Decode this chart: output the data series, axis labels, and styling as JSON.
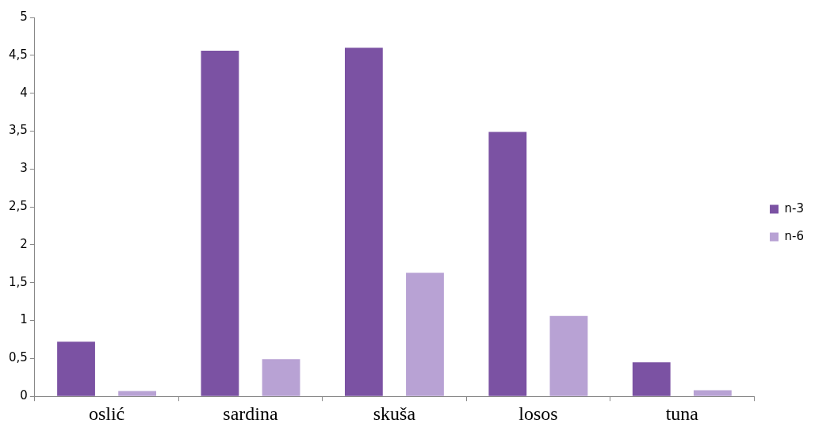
{
  "chart_data": {
    "type": "bar",
    "categories": [
      "oslić",
      "sardina",
      "skuša",
      "losos",
      "tuna"
    ],
    "series": [
      {
        "name": "n-3",
        "color": "#7b52a3",
        "values": [
          0.72,
          4.56,
          4.6,
          3.49,
          0.45
        ]
      },
      {
        "name": "n-6",
        "color": "#b8a2d4",
        "values": [
          0.07,
          0.49,
          1.63,
          1.06,
          0.08
        ]
      }
    ],
    "ylim": [
      0,
      5
    ],
    "yticks": [
      0,
      {
        "value": 0.5,
        "label": "0,5"
      },
      1,
      {
        "value": 1.5,
        "label": "1,5"
      },
      2,
      {
        "value": 2.5,
        "label": "2,5"
      },
      3,
      {
        "value": 3.5,
        "label": "3,5"
      },
      4,
      {
        "value": 4.5,
        "label": "4,5"
      },
      5
    ],
    "grid": false,
    "legend": "right"
  }
}
